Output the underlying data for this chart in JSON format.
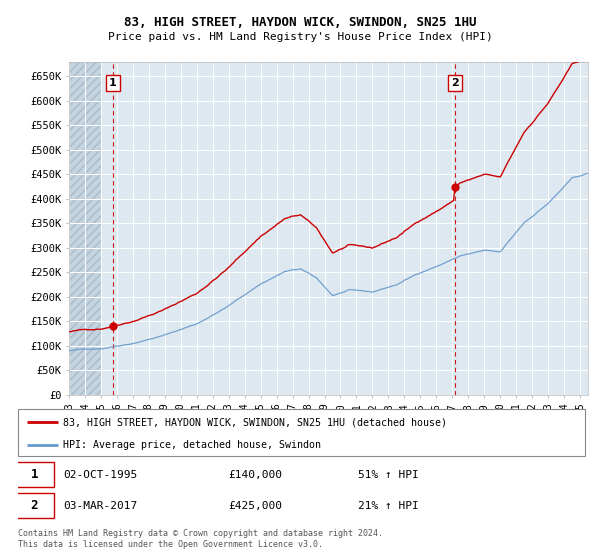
{
  "title1": "83, HIGH STREET, HAYDON WICK, SWINDON, SN25 1HU",
  "title2": "Price paid vs. HM Land Registry's House Price Index (HPI)",
  "bg_color": "#dde8f0",
  "grid_color": "#ffffff",
  "red_line_color": "#cc0000",
  "blue_line_color": "#6699cc",
  "marker_color": "#cc0000",
  "dashed_color": "#cc0000",
  "annotation1": {
    "label": "1",
    "date": "02-OCT-1995",
    "price": 140000,
    "pct": "51% ↑ HPI"
  },
  "annotation2": {
    "label": "2",
    "date": "03-MAR-2017",
    "price": 425000,
    "pct": "21% ↑ HPI"
  },
  "legend_line1": "83, HIGH STREET, HAYDON WICK, SWINDON, SN25 1HU (detached house)",
  "legend_line2": "HPI: Average price, detached house, Swindon",
  "footer": "Contains HM Land Registry data © Crown copyright and database right 2024.\nThis data is licensed under the Open Government Licence v3.0.",
  "ylim": [
    0,
    680000
  ],
  "yticks": [
    0,
    50000,
    100000,
    150000,
    200000,
    250000,
    300000,
    350000,
    400000,
    450000,
    500000,
    550000,
    600000,
    650000
  ],
  "xmin": 1993.0,
  "xmax": 2025.5,
  "sale1_year": 1995.75,
  "sale1_price": 140000,
  "sale2_year": 2017.17,
  "sale2_price": 425000
}
